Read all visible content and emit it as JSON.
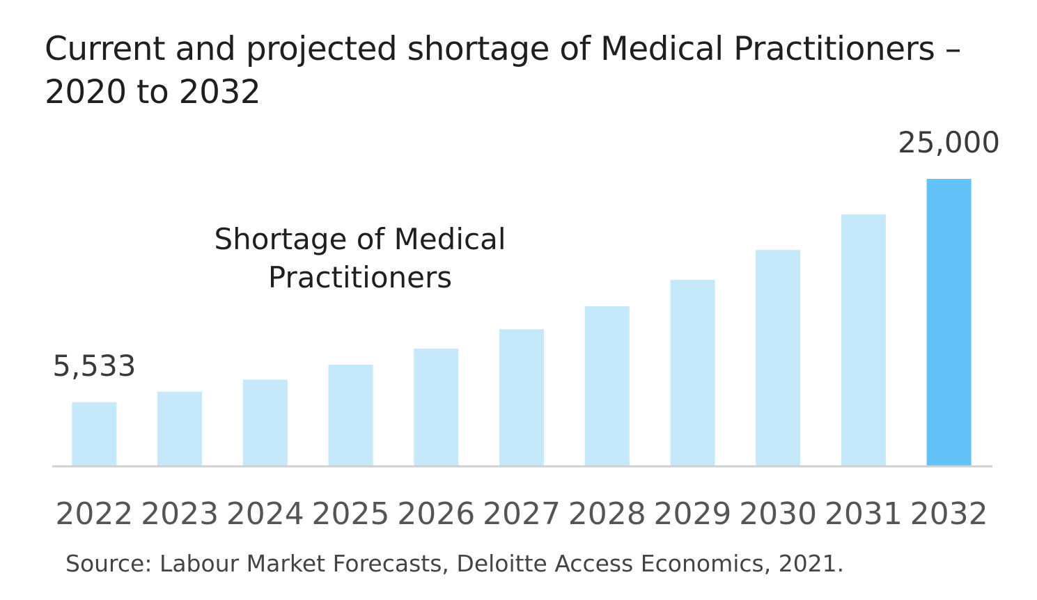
{
  "chart_data": {
    "type": "bar",
    "title": "Current and projected shortage of Medical Practitioners – 2020 to 2032",
    "categories": [
      "2022",
      "2023",
      "2024",
      "2025",
      "2026",
      "2027",
      "2028",
      "2029",
      "2030",
      "2031",
      "2032"
    ],
    "series": [
      {
        "name": "Shortage of Medical Practitioners",
        "values": [
          5533,
          6450,
          7500,
          8800,
          10200,
          11900,
          13900,
          16200,
          18800,
          21900,
          25000
        ]
      }
    ],
    "data_labels": [
      {
        "category": "2022",
        "text": "5,533"
      },
      {
        "category": "2032",
        "text": "25,000"
      }
    ],
    "highlight_category": "2032",
    "ylim": [
      0,
      25000
    ],
    "xlabel": "",
    "ylabel": "",
    "grid": false,
    "legend_placement": "top-left, inside plot"
  },
  "colors": {
    "bar": "#c5e8fb",
    "bar_highlight": "#63c2f7",
    "axis": "#d0d0d0",
    "title_text": "#1f1f1f",
    "label_text": "#3a3a3a",
    "tick_text": "#555555"
  },
  "source": "Source: Labour Market Forecasts, Deloitte Access Economics, 2021."
}
